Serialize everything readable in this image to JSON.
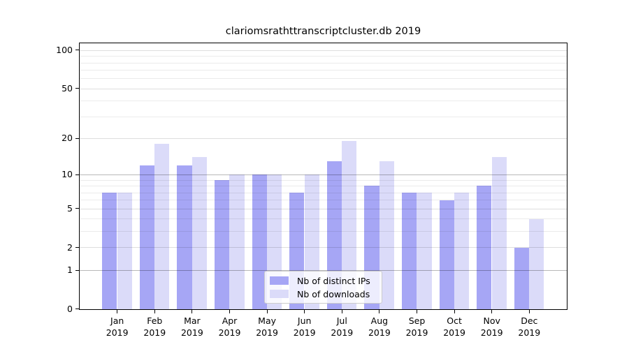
{
  "chart_data": {
    "type": "bar",
    "title": "clariomsrathttranscriptcluster.db 2019",
    "x": {
      "months": [
        "Jan",
        "Feb",
        "Mar",
        "Apr",
        "May",
        "Jun",
        "Jul",
        "Aug",
        "Sep",
        "Oct",
        "Nov",
        "Dec"
      ],
      "year": "2019"
    },
    "series": [
      {
        "name": "Nb of distinct IPs",
        "color": "#a6a6f5",
        "values": [
          7,
          12,
          12,
          9,
          10,
          7,
          13,
          8,
          7,
          6,
          8,
          2
        ]
      },
      {
        "name": "Nb of downloads",
        "color": "#dbdbf9",
        "values": [
          7,
          18,
          14,
          10,
          10,
          10,
          19,
          13,
          7,
          7,
          14,
          4
        ]
      }
    ],
    "yscale": "log1p",
    "ylim": [
      0,
      113
    ],
    "yticks_major": [
      0,
      1,
      2,
      5,
      10,
      20,
      50,
      100
    ],
    "yticks_emphasized": [
      1,
      10
    ],
    "yticks_minor": [
      3,
      4,
      6,
      7,
      8,
      9,
      30,
      40,
      60,
      70,
      80,
      90
    ],
    "grid": "on",
    "legend_position": "bottom-center"
  },
  "colors": {
    "axis": "#000000",
    "grid_emphasized": "rgba(0,0,0,0.28)",
    "grid_major": "rgba(0,0,0,0.13)",
    "grid_minor": "rgba(0,0,0,0.08)",
    "legend_border": "#cccccc",
    "legend_background": "rgba(255,255,255,0.8)"
  }
}
